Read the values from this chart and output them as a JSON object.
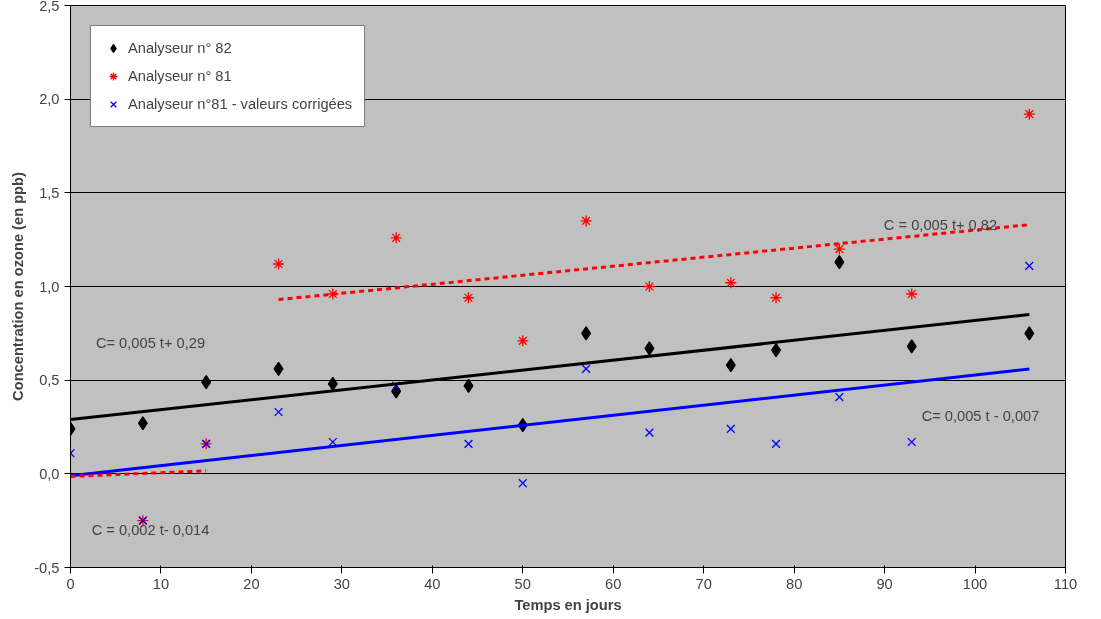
{
  "chart_data": {
    "type": "scatter",
    "xlabel": "Temps en jours",
    "ylabel": "Concentration en ozone (en ppb)",
    "xlim": [
      0,
      110
    ],
    "ylim": [
      -0.5,
      2.5
    ],
    "xticks": [
      0,
      10,
      20,
      30,
      40,
      50,
      60,
      70,
      80,
      90,
      100,
      110
    ],
    "yticks": [
      {
        "value": -0.5,
        "label": "-0,5"
      },
      {
        "value": 0,
        "label": "0,0"
      },
      {
        "value": 0.5,
        "label": "0,5"
      },
      {
        "value": 1,
        "label": "1,0"
      },
      {
        "value": 1.5,
        "label": "1,5"
      },
      {
        "value": 2,
        "label": "2,0"
      },
      {
        "value": 2.5,
        "label": "2,5"
      }
    ],
    "grid": "y",
    "legend": "top left",
    "series": [
      {
        "name": "Analyseur n° 82",
        "color": "#000000",
        "marker": "diamond",
        "x": [
          0,
          8,
          15,
          23,
          29,
          36,
          44,
          50,
          57,
          64,
          73,
          78,
          85,
          93,
          106
        ],
        "values": [
          0.24,
          0.27,
          0.49,
          0.56,
          0.48,
          0.44,
          0.47,
          0.26,
          0.75,
          0.67,
          0.58,
          0.66,
          1.13,
          0.68,
          0.75
        ]
      },
      {
        "name": "Analyseur n° 81",
        "color": "#ff0000",
        "marker": "cross",
        "x": [
          8,
          15,
          23,
          29,
          36,
          44,
          50,
          57,
          64,
          73,
          78,
          85,
          93,
          106
        ],
        "values": [
          -0.25,
          0.16,
          1.12,
          0.96,
          1.26,
          0.94,
          0.71,
          1.35,
          1.0,
          1.02,
          0.94,
          1.2,
          0.96,
          1.92
        ]
      },
      {
        "name": "Analyseur n°81 - valeurs corrigées",
        "color": "#0000ff",
        "marker": "cross",
        "x": [
          0,
          8,
          15,
          23,
          29,
          36,
          44,
          50,
          57,
          64,
          73,
          78,
          85,
          93,
          106
        ],
        "values": [
          0.11,
          -0.25,
          0.16,
          0.33,
          0.17,
          0.47,
          0.16,
          -0.05,
          0.56,
          0.22,
          0.24,
          0.16,
          0.41,
          0.17,
          1.11
        ]
      },
      {
        "type": "line",
        "color": "#000000",
        "line_style": "solid",
        "x": [
          0,
          106
        ],
        "values": [
          0.29,
          0.85
        ]
      },
      {
        "type": "line",
        "color": "#0000ff",
        "line_style": "solid",
        "x": [
          0,
          106
        ],
        "values": [
          -0.01,
          0.56
        ]
      },
      {
        "type": "line",
        "color": "#ff0000",
        "line_style": "dashed",
        "x": [
          23,
          106
        ],
        "values": [
          0.93,
          1.33
        ]
      },
      {
        "type": "line",
        "color": "#ff0000",
        "line_style": "dashed",
        "x": [
          0,
          15
        ],
        "values": [
          -0.014,
          0.016
        ]
      }
    ],
    "annotations": [
      "C = 0,005 t+ 0,82",
      "C= 0,005 t+ 0,29",
      "C= 0,005 t - 0,007",
      "C = 0,002 t- 0,014"
    ]
  }
}
